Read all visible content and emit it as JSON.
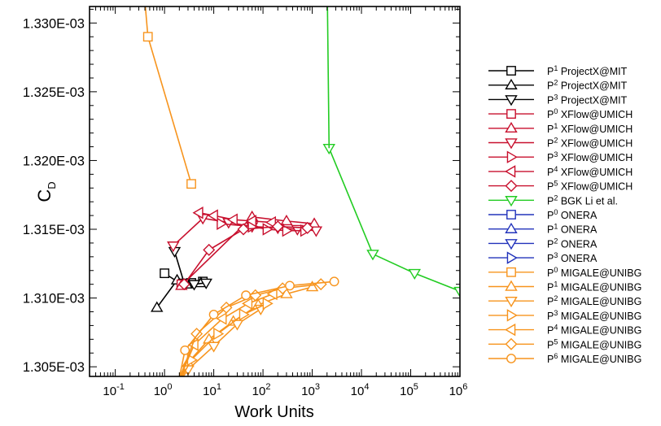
{
  "chart_data": {
    "type": "line",
    "xlabel": "Work Units",
    "ylabel": "C",
    "ylabel_sub": "D",
    "xscale": "log",
    "xlim": [
      0.03,
      1000000
    ],
    "ylim": [
      0.0013043,
      0.0013312
    ],
    "xticks": [
      {
        "value": 0.1,
        "base": "10",
        "exp": "-1"
      },
      {
        "value": 1,
        "base": "10",
        "exp": "0"
      },
      {
        "value": 10,
        "base": "10",
        "exp": "1"
      },
      {
        "value": 100,
        "base": "10",
        "exp": "2"
      },
      {
        "value": 1000,
        "base": "10",
        "exp": "3"
      },
      {
        "value": 10000,
        "base": "10",
        "exp": "4"
      },
      {
        "value": 100000,
        "base": "10",
        "exp": "5"
      },
      {
        "value": 1000000,
        "base": "10",
        "exp": "6"
      }
    ],
    "yticks": [
      {
        "value": 0.001305,
        "label": "1.305E-03"
      },
      {
        "value": 0.00131,
        "label": "1.310E-03"
      },
      {
        "value": 0.001315,
        "label": "1.315E-03"
      },
      {
        "value": 0.00132,
        "label": "1.320E-03"
      },
      {
        "value": 0.001325,
        "label": "1.325E-03"
      },
      {
        "value": 0.00133,
        "label": "1.330E-03"
      }
    ],
    "grid": false,
    "legend_position": "right",
    "series": [
      {
        "p": "1",
        "name": " ProjectX@MIT",
        "color": "#000000",
        "marker": "square",
        "x": [
          1,
          2.2,
          3.5,
          6
        ],
        "y": [
          0.0013118,
          0.001311,
          0.0013111,
          0.0013112
        ]
      },
      {
        "p": "2",
        "name": " ProjectX@MIT",
        "color": "#000000",
        "marker": "triangle-up",
        "x": [
          0.7,
          1.8,
          2.8,
          5.5
        ],
        "y": [
          0.0013093,
          0.0013113,
          0.001311,
          0.0013111
        ]
      },
      {
        "p": "3",
        "name": " ProjectX@MIT",
        "color": "#000000",
        "marker": "triangle-down",
        "x": [
          1.6,
          2.5,
          4,
          7
        ],
        "y": [
          0.0013134,
          0.0013111,
          0.001311,
          0.0013111
        ]
      },
      {
        "p": "0",
        "name": " XFlow@UMICH",
        "color": "#c8102e",
        "marker": "square",
        "x": [
          2.2
        ],
        "y": [
          0.001311
        ]
      },
      {
        "p": "1",
        "name": " XFlow@UMICH",
        "color": "#c8102e",
        "marker": "triangle-up",
        "x": [
          2.2,
          60,
          300,
          1100
        ],
        "y": [
          0.0013109,
          0.0013159,
          0.0013156,
          0.0013154
        ]
      },
      {
        "p": "2",
        "name": " XFlow@UMICH",
        "color": "#c8102e",
        "marker": "triangle-down",
        "x": [
          1.5,
          6,
          20,
          60,
          200,
          500,
          1200
        ],
        "y": [
          0.0013138,
          0.0013158,
          0.0013155,
          0.0013152,
          0.0013151,
          0.001315,
          0.0013149
        ]
      },
      {
        "p": "3",
        "name": " XFlow@UMICH",
        "color": "#c8102e",
        "marker": "triangle-right",
        "x": [
          14,
          60,
          120,
          300,
          700
        ],
        "y": [
          0.0013154,
          0.0013152,
          0.001315,
          0.0013149,
          0.0013149
        ]
      },
      {
        "p": "4",
        "name": " XFlow@UMICH",
        "color": "#c8102e",
        "marker": "triangle-left",
        "x": [
          5,
          10,
          25,
          60,
          150
        ],
        "y": [
          0.0013162,
          0.001316,
          0.0013157,
          0.0013156,
          0.0013155
        ]
      },
      {
        "p": "5",
        "name": " XFlow@UMICH",
        "color": "#c8102e",
        "marker": "diamond",
        "x": [
          2.5,
          8,
          40,
          200,
          800
        ],
        "y": [
          0.001311,
          0.0013135,
          0.001315,
          0.0013152,
          0.0013151
        ]
      },
      {
        "p": "2",
        "name": " BGK Li et al.",
        "color": "#22cc22",
        "marker": "triangle-down",
        "x": [
          2200,
          17000,
          120000,
          1000000
        ],
        "y": [
          0.0013209,
          0.0013132,
          0.0013118,
          0.0013105
        ]
      },
      {
        "p": "0",
        "name": " ONERA",
        "color": "#2233bb",
        "marker": "square",
        "x": [],
        "y": []
      },
      {
        "p": "1",
        "name": " ONERA",
        "color": "#2233bb",
        "marker": "triangle-up",
        "x": [],
        "y": []
      },
      {
        "p": "2",
        "name": " ONERA",
        "color": "#2233bb",
        "marker": "triangle-down",
        "x": [],
        "y": []
      },
      {
        "p": "3",
        "name": " ONERA",
        "color": "#2233bb",
        "marker": "triangle-right",
        "x": [],
        "y": []
      },
      {
        "p": "0",
        "name": " MIGALE@UNIBG",
        "color": "#f7941d",
        "marker": "square",
        "x": [
          0.38,
          0.46,
          3.5
        ],
        "y": [
          0.0013325,
          0.001329,
          0.0013183
        ]
      },
      {
        "p": "1",
        "name": " MIGALE@UNIBG",
        "color": "#f7941d",
        "marker": "triangle-up",
        "x": [
          1.5,
          3,
          8,
          25,
          80,
          300,
          1000
        ],
        "y": [
          0.001303,
          0.0013053,
          0.001307,
          0.0013083,
          0.0013095,
          0.0013103,
          0.0013108
        ]
      },
      {
        "p": "2",
        "name": " MIGALE@UNIBG",
        "color": "#f7941d",
        "marker": "triangle-down",
        "x": [
          1.5,
          3,
          10,
          30,
          90
        ],
        "y": [
          0.0013032,
          0.0013048,
          0.0013065,
          0.0013081,
          0.0013092
        ]
      },
      {
        "p": "3",
        "name": " MIGALE@UNIBG",
        "color": "#f7941d",
        "marker": "triangle-right",
        "x": [
          1.6,
          3.5,
          12,
          40,
          120
        ],
        "y": [
          0.0013033,
          0.0013055,
          0.0013074,
          0.0013088,
          0.0013096
        ]
      },
      {
        "p": "4",
        "name": " MIGALE@UNIBG",
        "color": "#f7941d",
        "marker": "triangle-left",
        "x": [
          1.7,
          4,
          15,
          50,
          160
        ],
        "y": [
          0.0013035,
          0.0013066,
          0.0013085,
          0.0013096,
          0.0013103
        ]
      },
      {
        "p": "5",
        "name": " MIGALE@UNIBG",
        "color": "#f7941d",
        "marker": "diamond",
        "x": [
          1.8,
          4.5,
          18,
          70,
          250,
          1500
        ],
        "y": [
          0.0013037,
          0.0013074,
          0.0013093,
          0.0013102,
          0.0013107,
          0.001311
        ]
      },
      {
        "p": "6",
        "name": " MIGALE@UNIBG",
        "color": "#f7941d",
        "marker": "circle",
        "x": [
          1.9,
          2.6,
          10,
          45,
          350,
          2800
        ],
        "y": [
          0.0013038,
          0.0013062,
          0.0013088,
          0.0013102,
          0.0013109,
          0.0013112
        ]
      }
    ]
  }
}
